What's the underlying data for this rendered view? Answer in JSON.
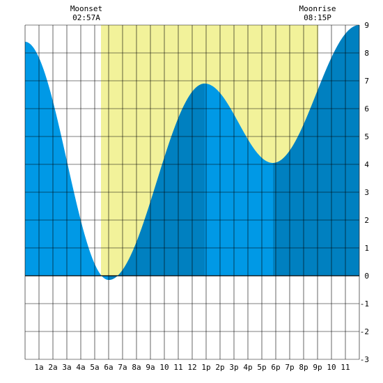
{
  "chart_data": {
    "type": "area",
    "x_unit": "hour",
    "xlim": [
      0,
      24
    ],
    "ylim": [
      -3,
      9
    ],
    "grid": true,
    "x_tick_labels": [
      {
        "x": 1,
        "label": "1a"
      },
      {
        "x": 2,
        "label": "2a"
      },
      {
        "x": 3,
        "label": "3a"
      },
      {
        "x": 4,
        "label": "4a"
      },
      {
        "x": 5,
        "label": "5a"
      },
      {
        "x": 6,
        "label": "6a"
      },
      {
        "x": 7,
        "label": "7a"
      },
      {
        "x": 8,
        "label": "8a"
      },
      {
        "x": 9,
        "label": "9a"
      },
      {
        "x": 10,
        "label": "10"
      },
      {
        "x": 11,
        "label": "11"
      },
      {
        "x": 12,
        "label": "12"
      },
      {
        "x": 13,
        "label": "1p"
      },
      {
        "x": 14,
        "label": "2p"
      },
      {
        "x": 15,
        "label": "3p"
      },
      {
        "x": 16,
        "label": "4p"
      },
      {
        "x": 17,
        "label": "5p"
      },
      {
        "x": 18,
        "label": "6p"
      },
      {
        "x": 19,
        "label": "7p"
      },
      {
        "x": 20,
        "label": "8p"
      },
      {
        "x": 21,
        "label": "9p"
      },
      {
        "x": 22,
        "label": "10"
      },
      {
        "x": 23,
        "label": "11"
      }
    ],
    "y_ticks": [
      -3,
      -2,
      -1,
      0,
      1,
      2,
      3,
      4,
      5,
      6,
      7,
      8,
      9
    ],
    "tide_extremes": [
      {
        "x": 0,
        "y": 8.4
      },
      {
        "x": 6.0,
        "y": -0.15
      },
      {
        "x": 12.9,
        "y": 6.9
      },
      {
        "x": 17.8,
        "y": 4.05
      },
      {
        "x": 24.0,
        "y": 9.0
      }
    ],
    "daylight": {
      "start": 5.45,
      "end": 21.05
    },
    "dark_bands": [
      [
        6.0,
        12.9
      ],
      [
        17.8,
        24.0
      ]
    ],
    "annotations": [
      {
        "x": 4.4,
        "title": "Moonset",
        "time": "02:57A"
      },
      {
        "x": 21.0,
        "title": "Moonrise",
        "time": "08:15P"
      }
    ],
    "colors": {
      "daylight": "#f2f29a",
      "tide_light": "#0099e6",
      "tide_dark": "#0080c0",
      "grid": "#000000"
    }
  }
}
